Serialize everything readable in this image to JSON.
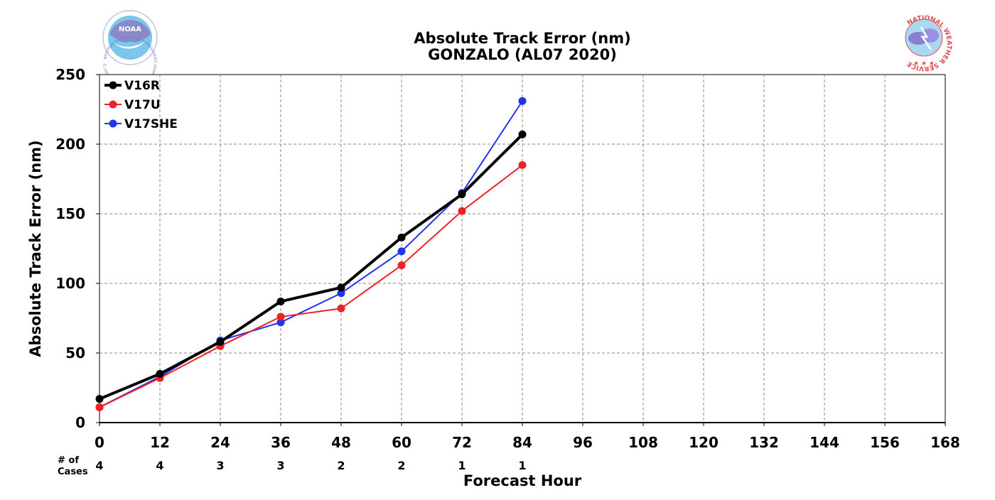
{
  "chart_data": {
    "type": "line",
    "title": "Absolute Track Error (nm)",
    "subtitle": "GONZALO (AL07 2020)",
    "xlabel": "Forecast Hour",
    "ylabel": "Absolute Track Error (nm)",
    "xlim": [
      0,
      168
    ],
    "ylim": [
      0,
      250
    ],
    "xticks": [
      "0",
      "12",
      "24",
      "36",
      "48",
      "60",
      "72",
      "84",
      "96",
      "108",
      "120",
      "132",
      "144",
      "156",
      "168"
    ],
    "yticks": [
      "0",
      "50",
      "100",
      "150",
      "200",
      "250"
    ],
    "grid": true,
    "legend_position": "top-left",
    "x": [
      0,
      12,
      24,
      36,
      48,
      60,
      72,
      84
    ],
    "series": [
      {
        "name": "V16R",
        "color": "#000000",
        "values": [
          17,
          35,
          58,
          87,
          97,
          133,
          164,
          207
        ]
      },
      {
        "name": "V17U",
        "color": "#ee2222",
        "values": [
          11,
          32,
          55,
          76,
          82,
          113,
          152,
          185
        ]
      },
      {
        "name": "V17SHE",
        "color": "#2233ee",
        "values": [
          11,
          33,
          59,
          72,
          93,
          123,
          165,
          231
        ]
      }
    ],
    "cases_label_line1": "# of",
    "cases_label_line2": "Cases",
    "cases": [
      "4",
      "4",
      "3",
      "3",
      "2",
      "2",
      "1",
      "1"
    ]
  },
  "logos": {
    "noaa": {
      "name": "noaa-logo",
      "text": "NOAA",
      "ring_text": "NATIONAL OCEANIC AND ATMOSPHERIC ADMINISTRATION · U.S. DEPARTMENT OF COMMERCE",
      "color": "#7ac6ec"
    },
    "nws": {
      "name": "nws-logo",
      "ring_text": "NATIONAL WEATHER SERVICE",
      "color": "#e05050"
    }
  }
}
